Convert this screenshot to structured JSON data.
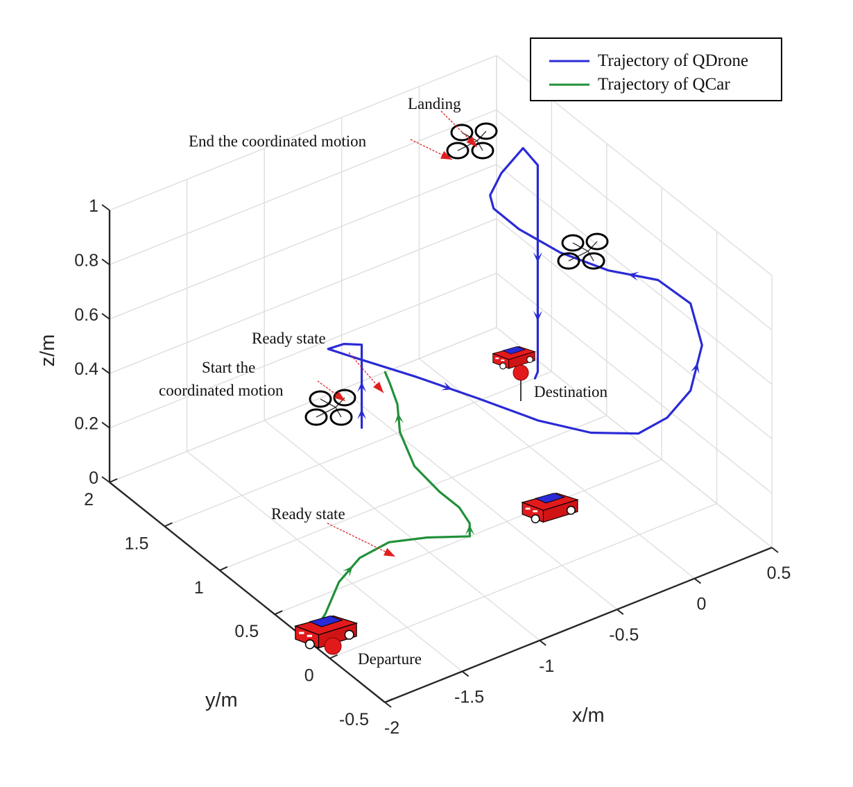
{
  "chart_data": {
    "type": "line",
    "projection": "3d",
    "grid": true,
    "legend_position": "top-right",
    "xlabel": "x/m",
    "ylabel": "y/m",
    "zlabel": "z/m",
    "xlim": [
      -2,
      0.5
    ],
    "ylim": [
      -0.5,
      2
    ],
    "zlim": [
      0,
      1
    ],
    "x_ticks": [
      "-2",
      "-1.5",
      "-1",
      "-0.5",
      "0",
      "0.5"
    ],
    "y_ticks": [
      "-0.5",
      "0",
      "0.5",
      "1",
      "1.5",
      "2"
    ],
    "z_ticks": [
      "0",
      "0.2",
      "0.4",
      "0.6",
      "0.8",
      "1"
    ],
    "series": [
      {
        "name": "Trajectory of QDrone",
        "color": "#2a2ad6",
        "points": [
          [
            -0.62,
            1.65,
            0.0
          ],
          [
            -0.62,
            1.65,
            0.1
          ],
          [
            -0.62,
            1.65,
            0.2
          ],
          [
            -0.62,
            1.65,
            0.27
          ],
          [
            -0.62,
            1.65,
            0.305
          ],
          [
            -0.7,
            1.7,
            0.31
          ],
          [
            -0.78,
            1.73,
            0.3
          ],
          [
            -0.72,
            1.6,
            0.3
          ],
          [
            -0.55,
            1.25,
            0.3
          ],
          [
            -0.4,
            0.9,
            0.3
          ],
          [
            -0.26,
            0.55,
            0.3
          ],
          [
            -0.1,
            0.3,
            0.3
          ],
          [
            0.1,
            0.15,
            0.3
          ],
          [
            0.25,
            0.1,
            0.34
          ],
          [
            0.38,
            0.07,
            0.42
          ],
          [
            0.44,
            0.05,
            0.58
          ],
          [
            0.38,
            0.07,
            0.74
          ],
          [
            0.22,
            0.14,
            0.84
          ],
          [
            0.0,
            0.28,
            0.88
          ],
          [
            -0.17,
            0.48,
            0.92
          ],
          [
            -0.28,
            0.7,
            0.96
          ],
          [
            -0.33,
            0.86,
            0.995
          ],
          [
            -0.31,
            0.92,
            1.02
          ],
          [
            -0.23,
            0.93,
            1.08
          ],
          [
            -0.09,
            0.93,
            1.14
          ],
          [
            -0.045,
            0.86,
            1.09
          ],
          [
            -0.045,
            0.86,
            0.85
          ],
          [
            -0.045,
            0.86,
            0.65
          ],
          [
            -0.045,
            0.86,
            0.42
          ],
          [
            -0.045,
            0.86,
            0.33
          ],
          [
            -0.07,
            0.85,
            0.315
          ]
        ]
      },
      {
        "name": "Trajectory of QCar",
        "color": "#229039",
        "points": [
          [
            -2.0,
            0.2,
            0.0
          ],
          [
            -1.78,
            0.35,
            0.0
          ],
          [
            -1.55,
            0.55,
            0.0
          ],
          [
            -1.33,
            0.67,
            0.0
          ],
          [
            -1.12,
            0.7,
            0.0
          ],
          [
            -0.93,
            0.62,
            0.0
          ],
          [
            -0.74,
            0.5,
            0.0
          ],
          [
            -0.67,
            0.6,
            0.0
          ],
          [
            -0.63,
            0.75,
            0.0
          ],
          [
            -0.63,
            0.93,
            0.0
          ],
          [
            -0.6,
            1.2,
            0.0
          ],
          [
            -0.48,
            1.5,
            0.0
          ],
          [
            -0.34,
            1.72,
            0.0
          ],
          [
            -0.26,
            1.9,
            0.0
          ],
          [
            -0.22,
            2.0,
            0.0
          ]
        ]
      }
    ],
    "annotations": [
      "Landing",
      "End the coordinated motion",
      "Ready state",
      "Start the",
      "coordinated motion",
      "Destination",
      "Ready state",
      "Departure"
    ]
  },
  "legend": {
    "drone": "Trajectory of QDrone",
    "car": "Trajectory of QCar"
  },
  "icons": {
    "drone": "quadcopter-icon",
    "car": "car-icon",
    "marker": "red-dot-marker",
    "annotation_arrow": "red-arrow"
  }
}
